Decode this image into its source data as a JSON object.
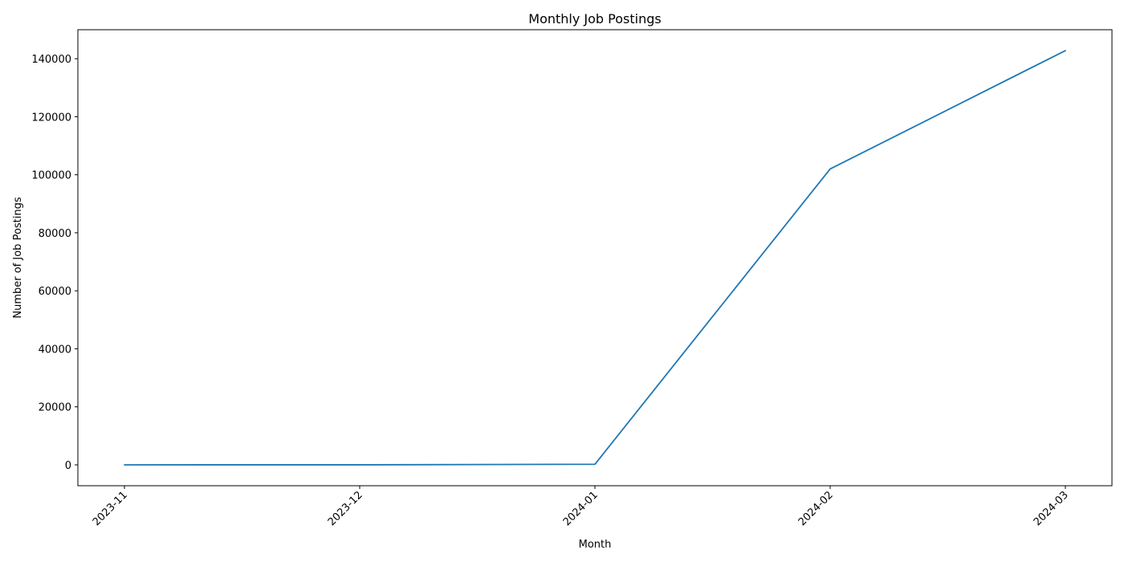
{
  "chart_data": {
    "type": "line",
    "title": "Monthly Job Postings",
    "xlabel": "Month",
    "ylabel": "Number of Job Postings",
    "x": [
      "2023-11",
      "2023-12",
      "2024-01",
      "2024-02",
      "2024-03"
    ],
    "series": [
      {
        "values": [
          5,
          10,
          200,
          102000,
          142800
        ],
        "color": "#1f77b4"
      }
    ],
    "yticks": [
      0,
      20000,
      40000,
      60000,
      80000,
      100000,
      120000,
      140000
    ],
    "ylim": [
      -7200,
      150000
    ],
    "grid": false,
    "legend": "none"
  }
}
